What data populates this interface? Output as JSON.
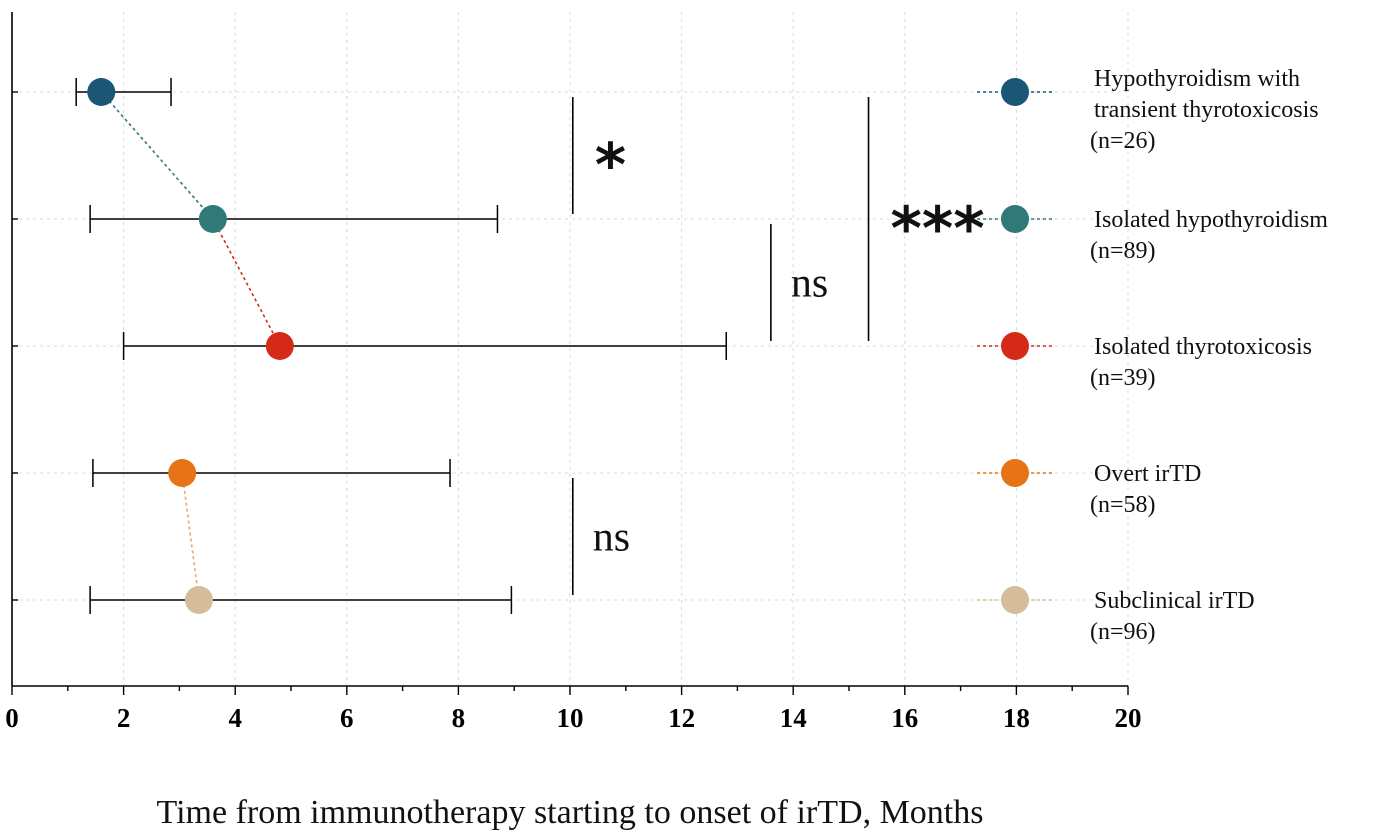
{
  "chart_data": {
    "type": "scatter",
    "xlabel": "Time from immunotherapy starting to onset of irTD, Months",
    "xlim": [
      0,
      20
    ],
    "xticks": [
      0,
      2,
      4,
      6,
      8,
      10,
      12,
      14,
      16,
      18,
      20
    ],
    "xtick_labels": [
      "0",
      "2",
      "4",
      "6",
      "8",
      "10",
      "12",
      "14",
      "16",
      "18",
      "20"
    ],
    "grid": true,
    "legend_position": "right",
    "series": [
      {
        "name": "Hypothyroidism with transient thyrotoxicosis",
        "label_lines": [
          "Hypothyroidism with",
          "transient thyrotoxicosis"
        ],
        "n_label": "(n=26)",
        "median": 1.6,
        "lower": 1.15,
        "upper": 2.85,
        "color": "#1b5677"
      },
      {
        "name": "Isolated hypothyroidism",
        "label_lines": [
          "Isolated hypothyroidism"
        ],
        "n_label": "(n=89)",
        "median": 3.6,
        "lower": 1.4,
        "upper": 8.7,
        "color": "#2f7a78"
      },
      {
        "name": "Isolated thyrotoxicosis",
        "label_lines": [
          "Isolated thyrotoxicosis"
        ],
        "n_label": "(n=39)",
        "median": 4.8,
        "lower": 2.0,
        "upper": 12.8,
        "color": "#d42a17"
      },
      {
        "name": "Overt irTD",
        "label_lines": [
          "Overt irTD"
        ],
        "n_label": "(n=58)",
        "median": 3.05,
        "lower": 1.45,
        "upper": 7.85,
        "color": "#e67416"
      },
      {
        "name": "Subclinical irTD",
        "label_lines": [
          "Subclinical irTD"
        ],
        "n_label": "(n=96)",
        "median": 3.35,
        "lower": 1.4,
        "upper": 8.95,
        "color": "#d5bd9b"
      }
    ],
    "connectors": [
      {
        "from": 0,
        "to": 1,
        "color": "#2f7a78"
      },
      {
        "from": 1,
        "to": 2,
        "color": "#d42a17"
      },
      {
        "from": 3,
        "to": 4,
        "color": "#e8a57a"
      }
    ],
    "significance": [
      {
        "label": "*",
        "between": [
          0,
          1
        ],
        "x": 10.05
      },
      {
        "label": "ns",
        "between": [
          1,
          2
        ],
        "x": 13.6
      },
      {
        "label": "***",
        "between": [
          0,
          2
        ],
        "x": 15.35
      },
      {
        "label": "ns",
        "between": [
          3,
          4
        ],
        "x": 10.05
      }
    ]
  }
}
